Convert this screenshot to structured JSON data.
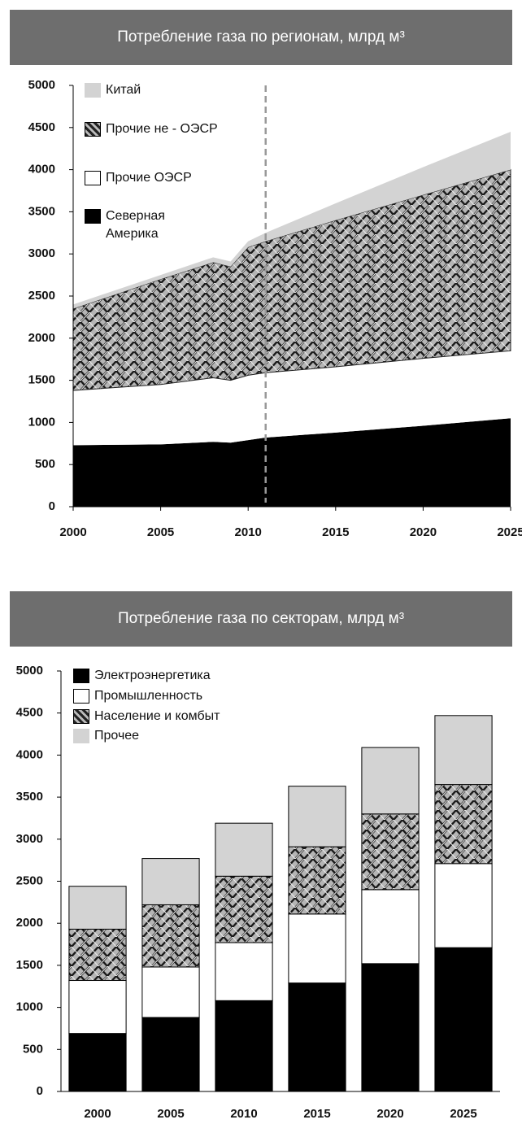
{
  "chart_data": [
    {
      "type": "area",
      "title": "Потребление газа по регионам, млрд м³",
      "x": [
        2000,
        2005,
        2008,
        2009,
        2010,
        2011,
        2015,
        2020,
        2025
      ],
      "series": [
        {
          "name": "Северная Америка",
          "color": "#000000",
          "values": [
            730,
            740,
            770,
            760,
            790,
            820,
            880,
            960,
            1050
          ]
        },
        {
          "name": "Прочие ОЭСР",
          "color": "#ffffff",
          "values": [
            650,
            710,
            760,
            740,
            770,
            770,
            780,
            800,
            800
          ]
        },
        {
          "name": "Прочие не - ОЭСР",
          "color": "hatch",
          "values": [
            970,
            1250,
            1370,
            1350,
            1520,
            1560,
            1740,
            1940,
            2150
          ]
        },
        {
          "name": "Китай",
          "color": "#d3d3d3",
          "values": [
            50,
            50,
            60,
            60,
            70,
            100,
            200,
            330,
            450
          ]
        }
      ],
      "xlim": [
        2000,
        2025
      ],
      "xticks": [
        2000,
        2005,
        2010,
        2015,
        2020,
        2025
      ],
      "ylim": [
        0,
        5000
      ],
      "yticks": [
        0,
        500,
        1000,
        1500,
        2000,
        2500,
        3000,
        3500,
        4000,
        4500,
        5000
      ],
      "vline": 2011
    },
    {
      "type": "bar",
      "title": "Потребление газа по секторам, млрд м³",
      "categories": [
        "2000",
        "2005",
        "2010",
        "2015",
        "2020",
        "2025"
      ],
      "series": [
        {
          "name": "Электроэнергетика",
          "color": "#000000",
          "values": [
            690,
            880,
            1080,
            1290,
            1520,
            1710
          ]
        },
        {
          "name": "Промышленность",
          "color": "#ffffff",
          "values": [
            630,
            600,
            690,
            820,
            880,
            1000
          ]
        },
        {
          "name": "Население и комбыт",
          "color": "hatch",
          "values": [
            610,
            740,
            790,
            800,
            900,
            940
          ]
        },
        {
          "name": "Прочее",
          "color": "#d3d3d3",
          "values": [
            510,
            550,
            630,
            720,
            790,
            820
          ]
        }
      ],
      "ylim": [
        0,
        5000
      ],
      "yticks": [
        0,
        500,
        1000,
        1500,
        2000,
        2500,
        3000,
        3500,
        4000,
        4500,
        5000
      ]
    }
  ]
}
